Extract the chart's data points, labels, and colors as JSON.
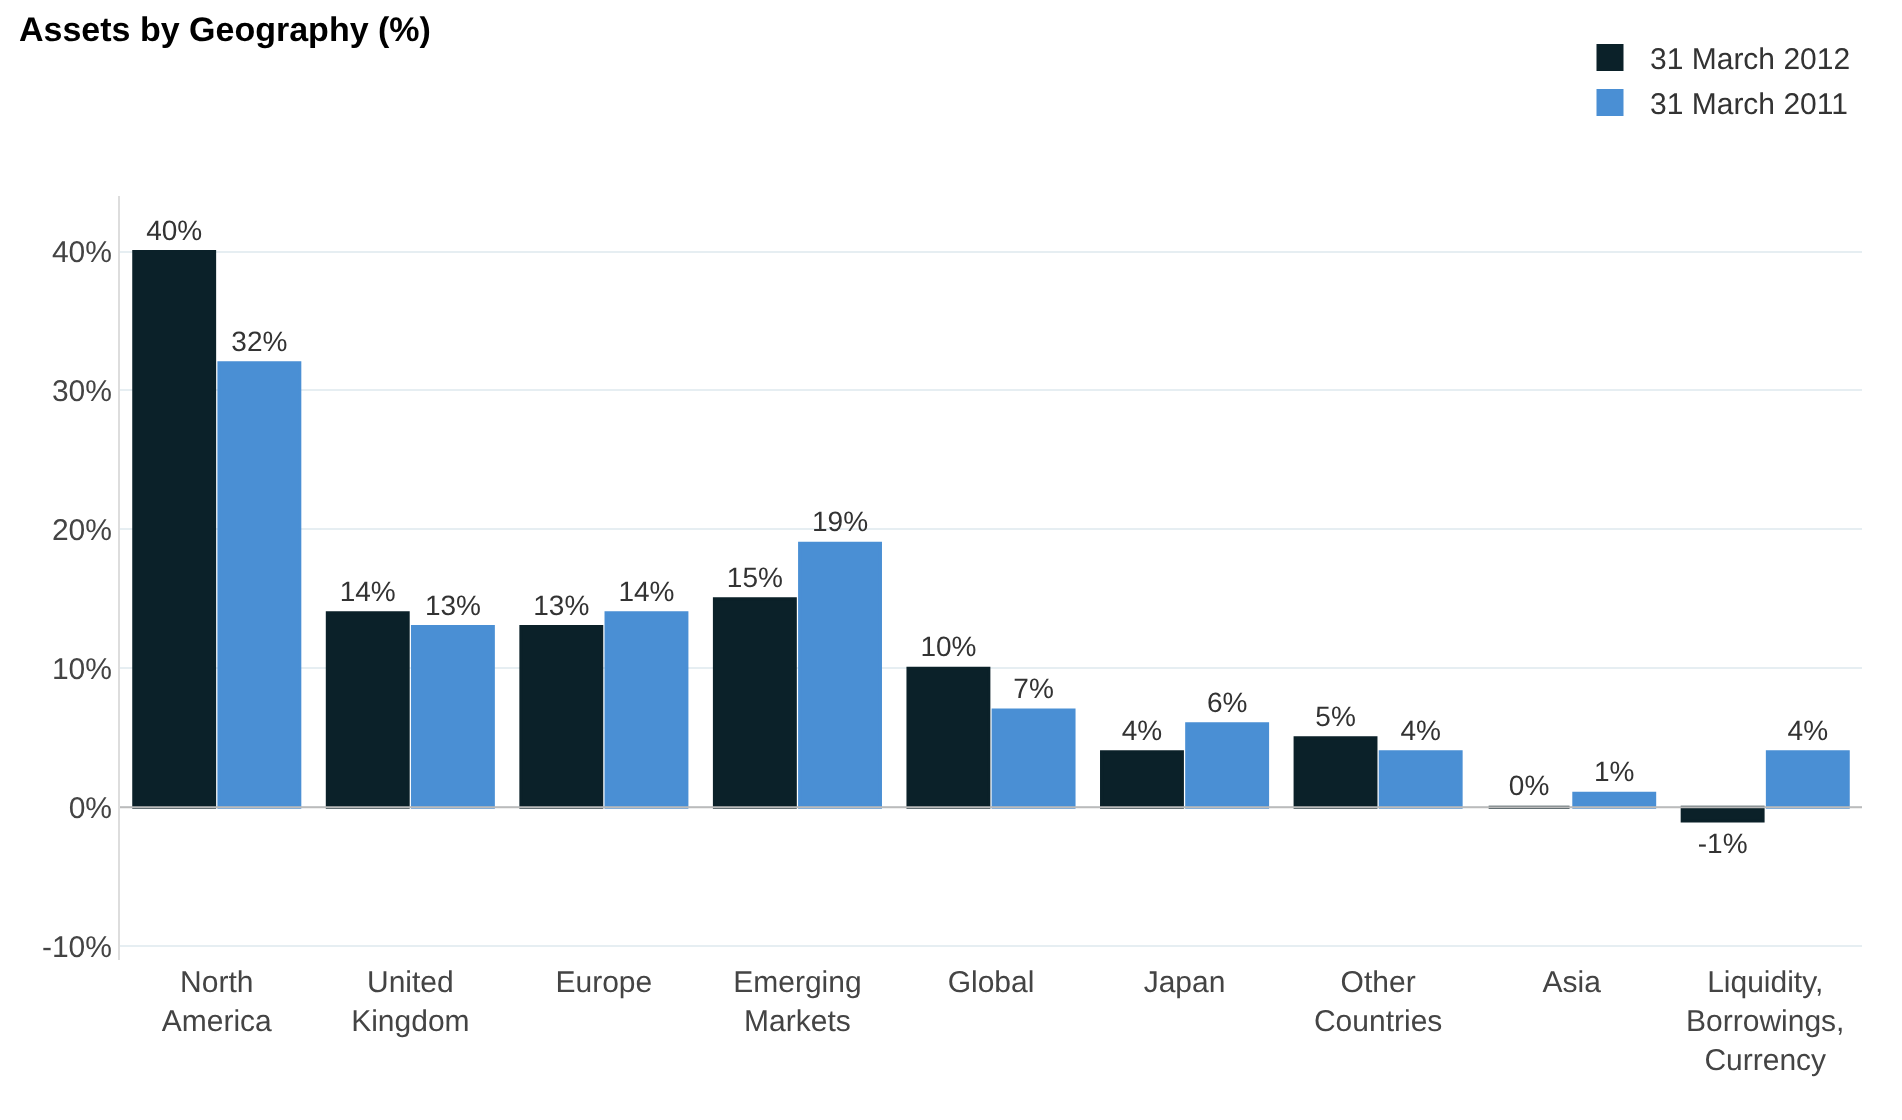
{
  "chart_data": {
    "type": "bar",
    "title": "Assets by Geography (%)",
    "categories": [
      "North America",
      "United Kingdom",
      "Europe",
      "Emerging Markets",
      "Global",
      "Japan",
      "Other Countries",
      "Asia",
      "Liquidity, Borrowings, Currency"
    ],
    "series": [
      {
        "name": "31 March 2012",
        "color": "#0b2129",
        "values": [
          40,
          14,
          13,
          15,
          10,
          4,
          5,
          0,
          -1
        ],
        "value_labels": [
          "40%",
          "14%",
          "13%",
          "15%",
          "10%",
          "4%",
          "5%",
          "0%",
          "-1%"
        ]
      },
      {
        "name": "31 March 2011",
        "color": "#4a8fd4",
        "values": [
          32,
          13,
          14,
          19,
          7,
          6,
          4,
          1,
          4
        ],
        "value_labels": [
          "32%",
          "13%",
          "14%",
          "19%",
          "7%",
          "6%",
          "4%",
          "1%",
          "4%"
        ]
      }
    ],
    "ylim": [
      -11,
      44
    ],
    "yticks": [
      {
        "value": -10,
        "label": "-10%"
      },
      {
        "value": 0,
        "label": "0%"
      },
      {
        "value": 10,
        "label": "10%"
      },
      {
        "value": 20,
        "label": "20%"
      },
      {
        "value": 30,
        "label": "30%"
      },
      {
        "value": 40,
        "label": "40%"
      }
    ],
    "grid": "y",
    "legend": "top right"
  }
}
